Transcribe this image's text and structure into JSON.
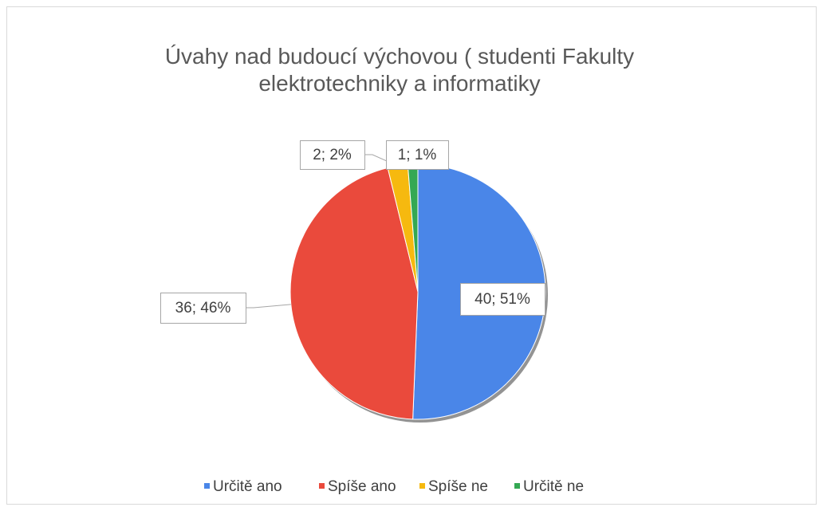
{
  "chart_data": {
    "type": "pie",
    "title": "Úvahy nad budoucí výchovou ( studenti Fakulty elektrotechniky a informatiky",
    "categories": [
      "Určitě ano",
      "Spíše ano",
      "Spíše ne",
      "Určitě ne"
    ],
    "values": [
      40,
      36,
      2,
      1
    ],
    "value_labels": [
      "40; 51%",
      "36; 46%",
      "2; 2%",
      "1; 1%"
    ],
    "colors": [
      "#4a86e8",
      "#ea4a3c",
      "#f6b90f",
      "#34a853"
    ],
    "legend": "bottom"
  }
}
